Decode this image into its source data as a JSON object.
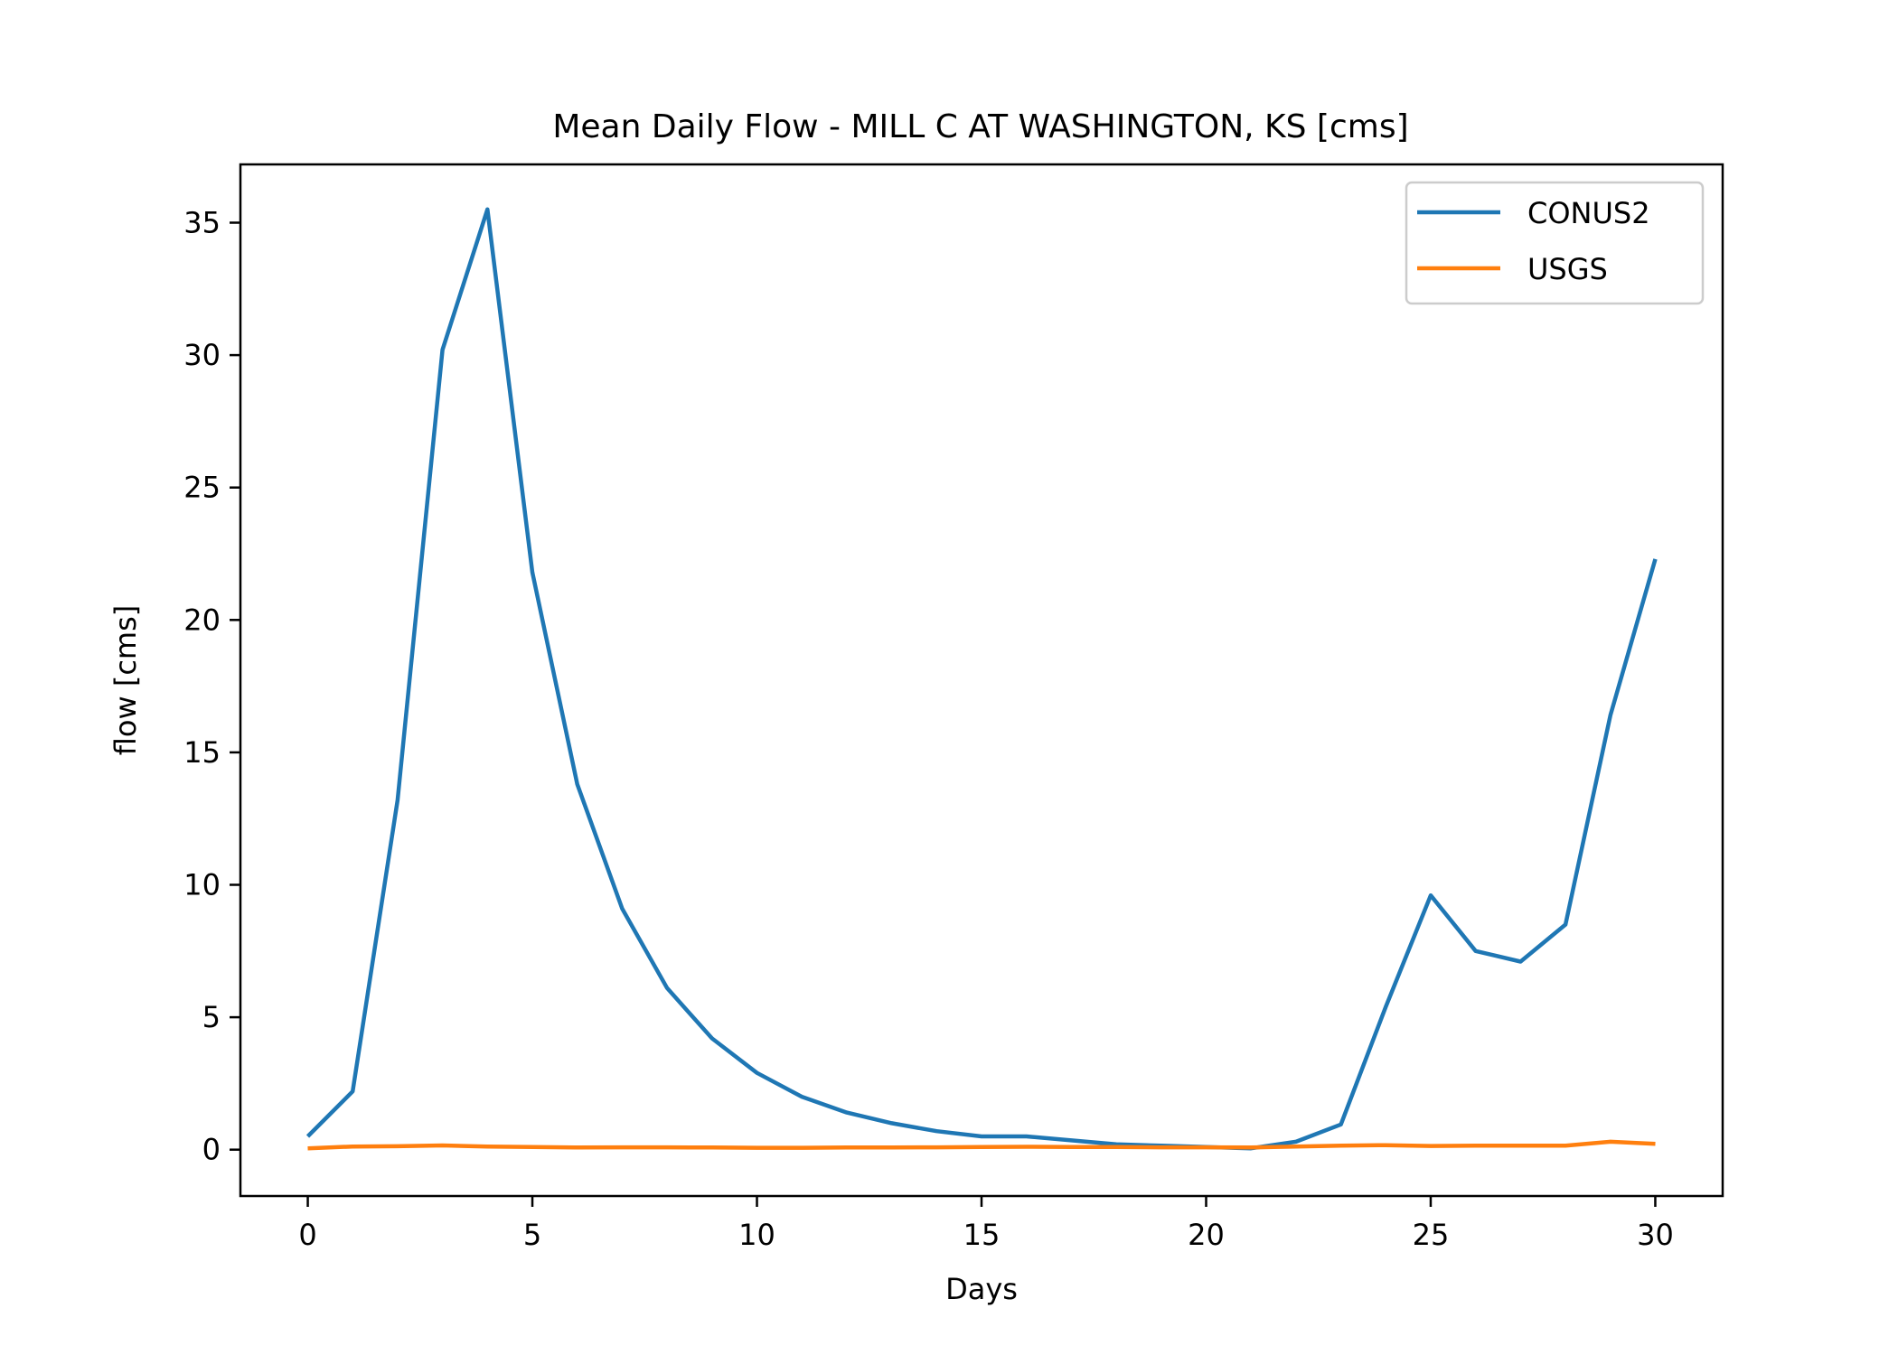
{
  "chart_data": {
    "type": "line",
    "title": "Mean Daily Flow - MILL C AT WASHINGTON, KS [cms]",
    "xlabel": "Days",
    "ylabel": "flow [cms]",
    "xlim": [
      -1.5,
      31.5
    ],
    "ylim": [
      -1.75,
      37.2
    ],
    "xticks": [
      0,
      5,
      10,
      15,
      20,
      25,
      30
    ],
    "yticks": [
      0,
      5,
      10,
      15,
      20,
      25,
      30,
      35
    ],
    "grid": false,
    "legend_position": "upper right",
    "x": [
      0,
      1,
      2,
      3,
      4,
      5,
      6,
      7,
      8,
      9,
      10,
      11,
      12,
      13,
      14,
      15,
      16,
      17,
      18,
      19,
      20,
      21,
      22,
      23,
      24,
      25,
      26,
      27,
      28,
      29,
      30
    ],
    "series": [
      {
        "name": "CONUS2",
        "color": "#1f77b4",
        "values": [
          0.5,
          2.2,
          13.2,
          30.2,
          35.5,
          21.8,
          13.8,
          9.1,
          6.1,
          4.2,
          2.9,
          2.0,
          1.4,
          1.0,
          0.7,
          0.5,
          0.5,
          0.35,
          0.2,
          0.15,
          0.1,
          0.05,
          0.3,
          0.95,
          5.4,
          9.6,
          7.5,
          7.1,
          8.5,
          16.4,
          22.3
        ]
      },
      {
        "name": "USGS",
        "color": "#ff7f0e",
        "values": [
          0.05,
          0.12,
          0.13,
          0.16,
          0.12,
          0.1,
          0.08,
          0.09,
          0.09,
          0.08,
          0.07,
          0.07,
          0.08,
          0.08,
          0.09,
          0.1,
          0.11,
          0.1,
          0.1,
          0.09,
          0.09,
          0.08,
          0.12,
          0.15,
          0.17,
          0.14,
          0.15,
          0.15,
          0.15,
          0.3,
          0.22
        ]
      }
    ]
  }
}
